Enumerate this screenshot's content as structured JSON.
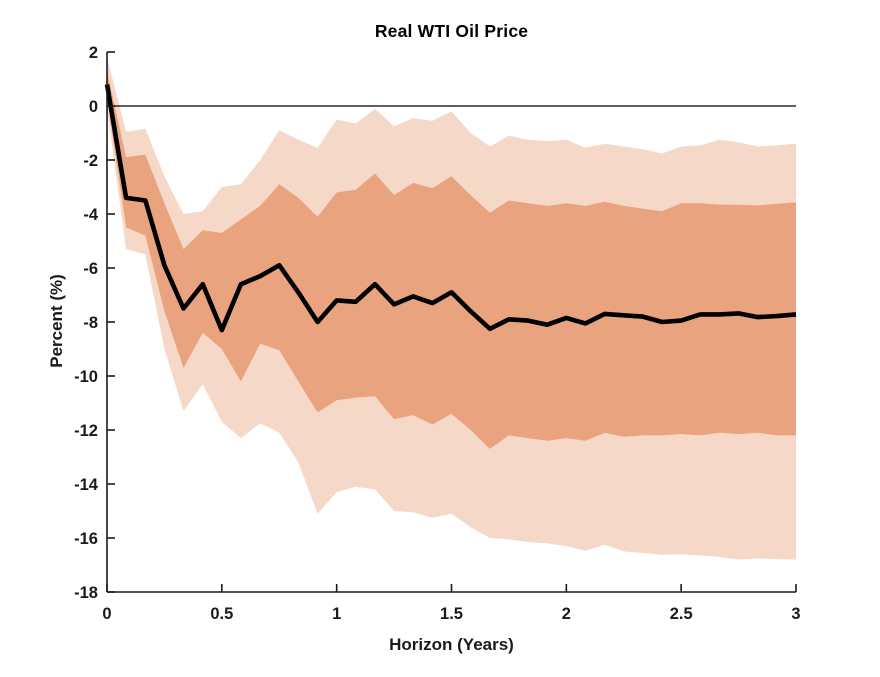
{
  "title": "Real WTI Oil Price",
  "axes": {
    "xlabel": "Horizon (Years)",
    "ylabel": "Percent (%)"
  },
  "chart_data": {
    "type": "area",
    "title": "Real WTI Oil Price",
    "xlabel": "Horizon (Years)",
    "ylabel": "Percent (%)",
    "xlim": [
      0,
      3
    ],
    "ylim": [
      -18,
      2
    ],
    "x_ticks": [
      0,
      0.5,
      1,
      1.5,
      2,
      2.5,
      3
    ],
    "x_tick_labels": [
      "0",
      "0.5",
      "1",
      "1.5",
      "2",
      "2.5",
      "3"
    ],
    "y_ticks": [
      2,
      0,
      -2,
      -4,
      -6,
      -8,
      -10,
      -12,
      -14,
      -16,
      -18
    ],
    "y_tick_labels": [
      "2",
      "0",
      "-2",
      "-4",
      "-6",
      "-8",
      "-10",
      "-12",
      "-14",
      "-16",
      "-18"
    ],
    "grid": false,
    "zero_line": true,
    "legend": "none",
    "x": [
      0,
      0.083,
      0.167,
      0.25,
      0.333,
      0.417,
      0.5,
      0.583,
      0.667,
      0.75,
      0.833,
      0.917,
      1,
      1.083,
      1.167,
      1.25,
      1.333,
      1.417,
      1.5,
      1.583,
      1.667,
      1.75,
      1.833,
      1.917,
      2,
      2.083,
      2.167,
      2.25,
      2.333,
      2.417,
      2.5,
      2.583,
      2.667,
      2.75,
      2.833,
      2.917,
      3
    ],
    "series": [
      {
        "name": "median_irf",
        "values": [
          0.8,
          -3.4,
          -3.5,
          -5.9,
          -7.5,
          -6.6,
          -8.3,
          -6.6,
          -6.3,
          -5.9,
          -6.9,
          -8.0,
          -7.2,
          -7.25,
          -6.6,
          -7.35,
          -7.05,
          -7.3,
          -6.9,
          -7.6,
          -8.25,
          -7.9,
          -7.95,
          -8.1,
          -7.85,
          -8.05,
          -7.7,
          -7.75,
          -7.8,
          -8.0,
          -7.95,
          -7.72,
          -7.72,
          -7.68,
          -7.82,
          -7.78,
          -7.72
        ]
      },
      {
        "name": "inner_band_upper",
        "values": [
          1.3,
          -1.9,
          -1.8,
          -3.6,
          -5.3,
          -4.6,
          -4.7,
          -4.2,
          -3.7,
          -2.9,
          -3.4,
          -4.1,
          -3.2,
          -3.1,
          -2.5,
          -3.3,
          -2.85,
          -3.05,
          -2.6,
          -3.3,
          -3.95,
          -3.5,
          -3.6,
          -3.7,
          -3.6,
          -3.7,
          -3.55,
          -3.7,
          -3.8,
          -3.9,
          -3.6,
          -3.6,
          -3.65,
          -3.66,
          -3.68,
          -3.62,
          -3.57
        ]
      },
      {
        "name": "inner_band_lower",
        "values": [
          0.3,
          -4.5,
          -4.8,
          -7.6,
          -9.7,
          -8.4,
          -9.0,
          -10.2,
          -8.8,
          -9.05,
          -10.2,
          -11.35,
          -10.9,
          -10.8,
          -10.75,
          -11.6,
          -11.45,
          -11.8,
          -11.4,
          -12.0,
          -12.7,
          -12.2,
          -12.3,
          -12.4,
          -12.3,
          -12.4,
          -12.1,
          -12.25,
          -12.2,
          -12.2,
          -12.15,
          -12.2,
          -12.1,
          -12.15,
          -12.1,
          -12.2,
          -12.2
        ]
      },
      {
        "name": "outer_band_upper",
        "values": [
          1.8,
          -0.95,
          -0.85,
          -2.6,
          -4.0,
          -3.9,
          -3.0,
          -2.9,
          -2.0,
          -0.9,
          -1.25,
          -1.55,
          -0.5,
          -0.65,
          -0.1,
          -0.75,
          -0.45,
          -0.55,
          -0.2,
          -1.0,
          -1.5,
          -1.1,
          -1.25,
          -1.3,
          -1.25,
          -1.55,
          -1.4,
          -1.5,
          -1.6,
          -1.76,
          -1.5,
          -1.45,
          -1.25,
          -1.35,
          -1.5,
          -1.45,
          -1.4
        ]
      },
      {
        "name": "outer_band_lower",
        "values": [
          -0.1,
          -5.3,
          -5.5,
          -9.0,
          -11.3,
          -10.3,
          -11.7,
          -12.3,
          -11.75,
          -12.1,
          -13.2,
          -15.1,
          -14.3,
          -14.1,
          -14.2,
          -15.0,
          -15.05,
          -15.25,
          -15.1,
          -15.6,
          -16.0,
          -16.05,
          -16.15,
          -16.2,
          -16.3,
          -16.47,
          -16.25,
          -16.5,
          -16.55,
          -16.62,
          -16.6,
          -16.65,
          -16.7,
          -16.8,
          -16.76,
          -16.78,
          -16.8
        ]
      }
    ],
    "colors": {
      "inner_band": "#E9A37E",
      "outer_band": "#F6D8C9",
      "median_line": "#000000",
      "zero_line": "#000000",
      "axis": "#1a1a1a"
    }
  }
}
